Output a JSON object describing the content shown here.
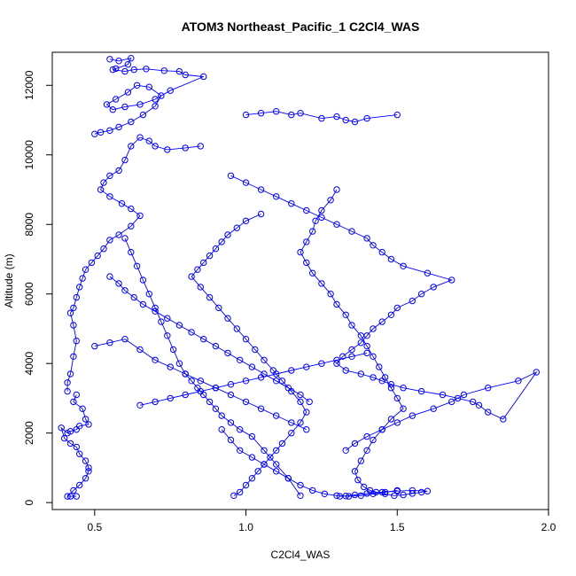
{
  "chart_data": {
    "type": "scatter",
    "title": "ATOM3 Northeast_Pacific_1 C2Cl4_WAS",
    "xlabel": "C2Cl4_WAS",
    "ylabel": "Altitude (m)",
    "xlim": [
      0.36,
      2.0
    ],
    "ylim": [
      -200,
      12950
    ],
    "x_ticks": [
      0.5,
      1.0,
      1.5,
      2.0
    ],
    "x_tick_labels": [
      "0.5",
      "1.0",
      "1.5",
      "2.0"
    ],
    "y_ticks": [
      0,
      2000,
      4000,
      6000,
      8000,
      10000,
      12000
    ],
    "y_tick_labels": [
      "0",
      "2000",
      "4000",
      "6000",
      "8000",
      "10000",
      "12000"
    ],
    "grid": false,
    "legend": "none",
    "color": "#0000ff",
    "marker": "open-circle",
    "connected": true,
    "series": [
      {
        "x": [
          0.55,
          0.58,
          0.62,
          0.61,
          0.57,
          0.56,
          0.6,
          0.63,
          0.67,
          0.73,
          0.78,
          0.8,
          0.86,
          0.75,
          0.7,
          0.65,
          0.6,
          0.56,
          0.54,
          0.57,
          0.61,
          0.64,
          0.68,
          0.72,
          0.7,
          0.66,
          0.62,
          0.58,
          0.55,
          0.52,
          0.5
        ],
        "y": [
          12750,
          12700,
          12780,
          12600,
          12480,
          12450,
          12400,
          12450,
          12470,
          12420,
          12400,
          12300,
          12250,
          11850,
          11600,
          11450,
          11380,
          11300,
          11450,
          11600,
          11800,
          12000,
          11950,
          11700,
          11400,
          11150,
          10950,
          10800,
          10700,
          10650,
          10600
        ]
      },
      {
        "x": [
          1.5,
          1.4,
          1.36,
          1.33,
          1.3,
          1.25,
          1.18,
          1.15,
          1.1,
          1.05,
          1.0
        ],
        "y": [
          11150,
          11050,
          10950,
          11000,
          11100,
          11050,
          11200,
          11150,
          11250,
          11200,
          11150
        ]
      },
      {
        "x": [
          0.85,
          0.8,
          0.74,
          0.7,
          0.68,
          0.65,
          0.62,
          0.6,
          0.58,
          0.55,
          0.53,
          0.52,
          0.55,
          0.59,
          0.62,
          0.65,
          0.62,
          0.58,
          0.55,
          0.53,
          0.51,
          0.49,
          0.47,
          0.46,
          0.45,
          0.44,
          0.43,
          0.42,
          0.43,
          0.44,
          0.43,
          0.42,
          0.41,
          0.41
        ],
        "y": [
          10250,
          10200,
          10150,
          10250,
          10400,
          10500,
          10250,
          9850,
          9550,
          9400,
          9200,
          9000,
          8800,
          8600,
          8450,
          8250,
          7950,
          7700,
          7550,
          7300,
          7100,
          6900,
          6700,
          6450,
          6200,
          5900,
          5600,
          5450,
          5100,
          4650,
          4200,
          3700,
          3450,
          3200
        ]
      },
      {
        "x": [
          0.44,
          0.43,
          0.46,
          0.47,
          0.48,
          0.45,
          0.44,
          0.42,
          0.41,
          0.39,
          0.4,
          0.42,
          0.44,
          0.45,
          0.47,
          0.48,
          0.48,
          0.47,
          0.45,
          0.43,
          0.41,
          0.42,
          0.44
        ],
        "y": [
          3100,
          2900,
          2700,
          2400,
          2250,
          2200,
          2100,
          2050,
          2000,
          2150,
          1850,
          1700,
          1600,
          1400,
          1200,
          1000,
          900,
          700,
          500,
          350,
          180,
          180,
          180
        ]
      },
      {
        "x": [
          0.95,
          1.0,
          1.05,
          1.1,
          1.15,
          1.2,
          1.25,
          1.3,
          1.35,
          1.4,
          1.42,
          1.45,
          1.48,
          1.52,
          1.6,
          1.68,
          1.62,
          1.58,
          1.55,
          1.5,
          1.48,
          1.45,
          1.42,
          1.4,
          1.38,
          1.35,
          1.32,
          1.3,
          1.33,
          1.38,
          1.42,
          1.45,
          1.48,
          1.52,
          1.58,
          1.65,
          1.7,
          1.75,
          1.77,
          1.8,
          1.85,
          1.96,
          1.9,
          1.8,
          1.72,
          1.68,
          1.62,
          1.55,
          1.5,
          1.45,
          1.4,
          1.36,
          1.33
        ],
        "y": [
          9400,
          9200,
          9000,
          8800,
          8600,
          8400,
          8200,
          8000,
          7800,
          7600,
          7400,
          7200,
          7000,
          6800,
          6600,
          6400,
          6200,
          6000,
          5800,
          5600,
          5400,
          5200,
          5000,
          4800,
          4600,
          4400,
          4200,
          4000,
          3800,
          3700,
          3600,
          3500,
          3400,
          3300,
          3200,
          3100,
          3000,
          2900,
          2800,
          2600,
          2400,
          3750,
          3500,
          3300,
          3100,
          2900,
          2700,
          2500,
          2300,
          2100,
          1900,
          1700,
          1500
        ]
      },
      {
        "x": [
          1.3,
          1.28,
          1.25,
          1.23,
          1.22,
          1.2,
          1.18,
          1.2,
          1.22,
          1.25,
          1.28,
          1.3,
          1.33,
          1.35,
          1.38,
          1.4,
          1.42,
          1.44,
          1.46,
          1.48,
          1.5,
          1.52,
          1.48,
          1.45,
          1.42,
          1.4,
          1.38,
          1.36,
          1.37,
          1.39,
          1.41,
          1.43,
          1.46,
          1.49,
          1.52,
          1.55,
          1.58,
          1.6,
          1.55,
          1.5,
          1.45,
          1.4,
          1.36,
          1.33,
          1.31
        ],
        "y": [
          9000,
          8700,
          8400,
          8100,
          7800,
          7500,
          7200,
          6900,
          6600,
          6300,
          6000,
          5700,
          5400,
          5100,
          4800,
          4500,
          4200,
          3900,
          3600,
          3300,
          3000,
          2700,
          2400,
          2100,
          1800,
          1500,
          1200,
          900,
          650,
          450,
          350,
          300,
          250,
          200,
          220,
          260,
          300,
          330,
          350,
          330,
          300,
          260,
          220,
          190,
          180
        ]
      },
      {
        "x": [
          1.05,
          1.0,
          0.97,
          0.94,
          0.92,
          0.9,
          0.88,
          0.86,
          0.84,
          0.82,
          0.85,
          0.88,
          0.91,
          0.94,
          0.97,
          1.0,
          1.03,
          1.06,
          1.09,
          1.12,
          1.15,
          1.18,
          1.2,
          1.18,
          1.15,
          1.12,
          1.1,
          1.08,
          1.06,
          1.04,
          1.02,
          1.0,
          0.98,
          0.96
        ],
        "y": [
          8300,
          8100,
          7900,
          7700,
          7500,
          7300,
          7100,
          6900,
          6700,
          6500,
          6200,
          5900,
          5600,
          5300,
          5000,
          4700,
          4400,
          4100,
          3800,
          3500,
          3200,
          2900,
          2600,
          2300,
          2000,
          1700,
          1500,
          1300,
          1100,
          900,
          700,
          500,
          300,
          200
        ]
      },
      {
        "x": [
          0.6,
          0.62,
          0.64,
          0.66,
          0.68,
          0.7,
          0.72,
          0.74,
          0.76,
          0.78,
          0.8,
          0.82,
          0.84,
          0.86,
          0.88,
          0.9,
          0.92,
          0.95,
          0.98,
          1.02,
          1.06,
          1.1,
          1.14,
          1.18
        ],
        "y": [
          7600,
          7200,
          6800,
          6400,
          6000,
          5600,
          5200,
          4800,
          4400,
          4000,
          3700,
          3500,
          3300,
          3100,
          2900,
          2700,
          2500,
          2300,
          2100,
          1900,
          1500,
          1100,
          700,
          200
        ]
      },
      {
        "x": [
          0.55,
          0.58,
          0.6,
          0.63,
          0.66,
          0.7,
          0.74,
          0.78,
          0.82,
          0.86,
          0.9,
          0.94,
          0.98,
          1.02,
          1.06,
          1.1,
          1.14,
          1.18,
          1.21
        ],
        "y": [
          6500,
          6300,
          6100,
          5900,
          5700,
          5500,
          5300,
          5100,
          4900,
          4700,
          4500,
          4300,
          4100,
          3900,
          3700,
          3500,
          3300,
          3100,
          2900
        ]
      },
      {
        "x": [
          0.5,
          0.55,
          0.6,
          0.65,
          0.7,
          0.75,
          0.8,
          0.85,
          0.9,
          0.95,
          1.0,
          1.05,
          1.1,
          1.15,
          1.2
        ],
        "y": [
          4500,
          4600,
          4700,
          4400,
          4100,
          3900,
          3700,
          3500,
          3300,
          3100,
          2900,
          2700,
          2500,
          2300,
          2100
        ]
      },
      {
        "x": [
          0.65,
          0.7,
          0.75,
          0.8,
          0.85,
          0.9,
          0.95,
          1.0,
          1.05,
          1.1,
          1.15,
          1.2,
          1.25,
          1.3,
          1.35,
          1.4
        ],
        "y": [
          2800,
          2900,
          3000,
          3100,
          3200,
          3300,
          3400,
          3500,
          3600,
          3700,
          3800,
          3900,
          4000,
          4100,
          4200,
          4300
        ]
      },
      {
        "x": [
          0.92,
          0.95,
          0.98,
          1.02,
          1.06,
          1.1,
          1.14,
          1.18,
          1.22,
          1.26,
          1.3,
          1.34,
          1.38,
          1.42,
          1.46,
          1.5
        ],
        "y": [
          2100,
          1800,
          1500,
          1300,
          1100,
          900,
          700,
          500,
          350,
          250,
          200,
          180,
          200,
          250,
          300,
          350
        ]
      }
    ]
  }
}
